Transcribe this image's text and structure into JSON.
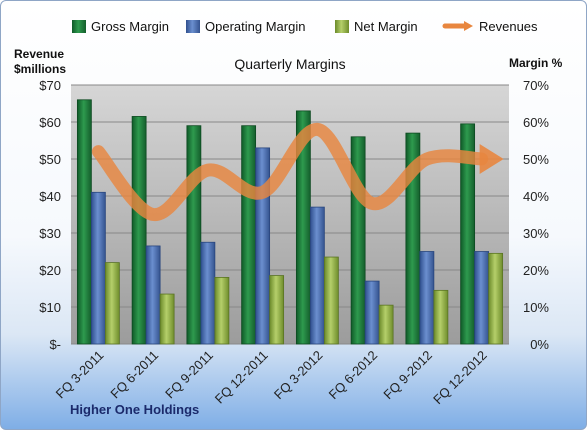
{
  "chart_data": {
    "type": "bar",
    "title": "Quarterly Margins",
    "footer": "Higher One Holdings",
    "left_axis_title": [
      "Revenue",
      "$millions"
    ],
    "right_axis_title": "Margin %",
    "left_ticks": [
      "$-",
      "$10",
      "$20",
      "$30",
      "$40",
      "$50",
      "$60",
      "$70"
    ],
    "right_ticks": [
      "0%",
      "10%",
      "20%",
      "30%",
      "40%",
      "50%",
      "60%",
      "70%"
    ],
    "ylim_left": [
      0,
      70
    ],
    "ylim_right": [
      0,
      70
    ],
    "categories": [
      "FQ 3-2011",
      "FQ 6-2011",
      "FQ 9-2011",
      "FQ 12-2011",
      "FQ 3-2012",
      "FQ 6-2012",
      "FQ 9-2012",
      "FQ 12-2012"
    ],
    "series": [
      {
        "name": "Gross Margin",
        "kind": "bar",
        "axis": "right",
        "color": "#1f7a3c",
        "values": [
          66,
          61.5,
          59,
          59,
          63,
          56,
          57,
          59.5
        ]
      },
      {
        "name": "Operating Margin",
        "kind": "bar",
        "axis": "right",
        "color": "#4a6fb3",
        "values": [
          41,
          26.5,
          27.5,
          53,
          37,
          17,
          25,
          25
        ]
      },
      {
        "name": "Net Margin",
        "kind": "bar",
        "axis": "right",
        "color": "#93b04a",
        "values": [
          22,
          13.5,
          18,
          18.5,
          23.5,
          10.5,
          14.5,
          24.5
        ]
      },
      {
        "name": "Revenues",
        "kind": "line",
        "axis": "left",
        "color": "#e8863f",
        "values": [
          52,
          35,
          47,
          41,
          58,
          38,
          50,
          50
        ]
      }
    ],
    "legend_position": "top",
    "grid": true
  }
}
